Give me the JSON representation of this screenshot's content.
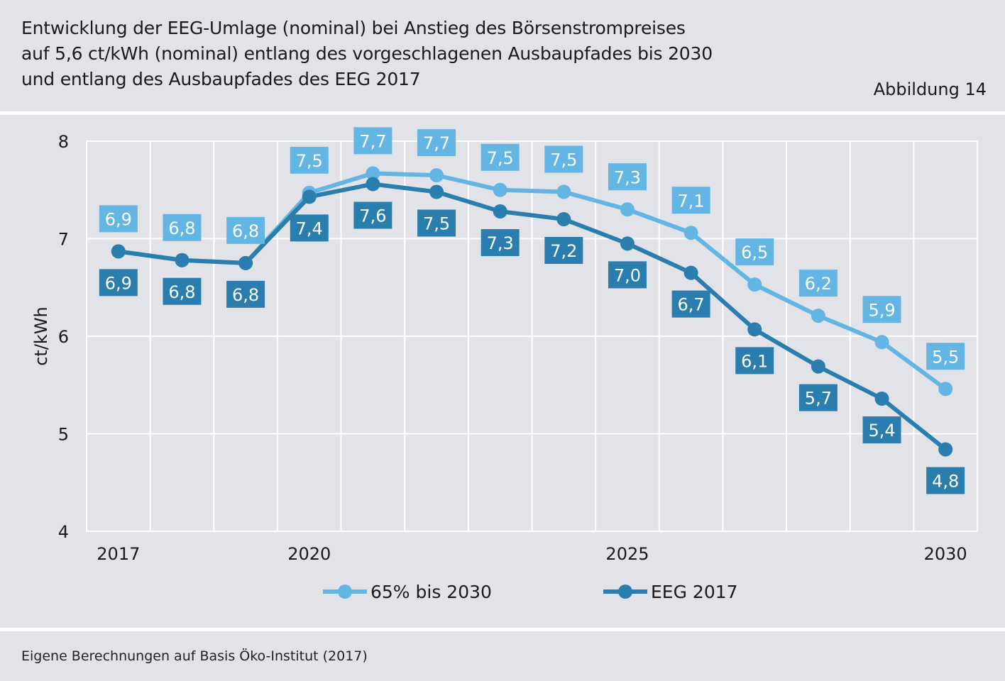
{
  "header": {
    "title_lines": [
      "Entwicklung der EEG-Umlage (nominal) bei Anstieg des Börsenstrompreises",
      "auf 5,6 ct/kWh (nominal) entlang des vorgeschlagenen Ausbaupfades bis 2030",
      "und entlang des Ausbaupfades des EEG 2017"
    ],
    "figure_label": "Abbildung 14"
  },
  "footer": {
    "source": "Eigene Berechnungen auf Basis Öko-Institut (2017)"
  },
  "colors": {
    "background": "#e2e3e8",
    "series_light": "#63b6e3",
    "series_dark": "#2a7ead",
    "grid": "#ffffff"
  },
  "chart_data": {
    "type": "line",
    "title": "Entwicklung der EEG-Umlage (nominal) bei Anstieg des Börsenstrompreises auf 5,6 ct/kWh (nominal) entlang des vorgeschlagenen Ausbaupfades bis 2030 und entlang des Ausbaupfades des EEG 2017",
    "xlabel": "",
    "ylabel": "ct/kWh",
    "x": [
      2017,
      2018,
      2019,
      2020,
      2021,
      2022,
      2023,
      2024,
      2025,
      2026,
      2027,
      2028,
      2029,
      2030
    ],
    "x_tick_labels": [
      "2017",
      "2020",
      "2025",
      "2030"
    ],
    "y_ticks": [
      4,
      5,
      6,
      7,
      8
    ],
    "y_tick_labels": [
      "4",
      "5",
      "6",
      "7",
      "8"
    ],
    "ylim": [
      4,
      8
    ],
    "grid": true,
    "legend_position": "bottom-center",
    "series": [
      {
        "name": "65% bis 2030",
        "color": "#63b6e3",
        "values": [
          6.87,
          6.78,
          6.75,
          7.47,
          7.67,
          7.65,
          7.5,
          7.48,
          7.3,
          7.06,
          6.53,
          6.21,
          5.94,
          5.46
        ],
        "labels": [
          "6,9",
          "6,8",
          "6,8",
          "7,5",
          "7,7",
          "7,7",
          "7,5",
          "7,5",
          "7,3",
          "7,1",
          "6,5",
          "6,2",
          "5,9",
          "5,5"
        ]
      },
      {
        "name": "EEG 2017",
        "color": "#2a7ead",
        "values": [
          6.87,
          6.78,
          6.75,
          7.43,
          7.56,
          7.48,
          7.28,
          7.2,
          6.95,
          6.65,
          6.07,
          5.69,
          5.36,
          4.84
        ],
        "labels": [
          "6,9",
          "6,8",
          "6,8",
          "7,4",
          "7,6",
          "7,5",
          "7,3",
          "7,2",
          "7,0",
          "6,7",
          "6,1",
          "5,7",
          "5,4",
          "4,8"
        ]
      }
    ]
  }
}
